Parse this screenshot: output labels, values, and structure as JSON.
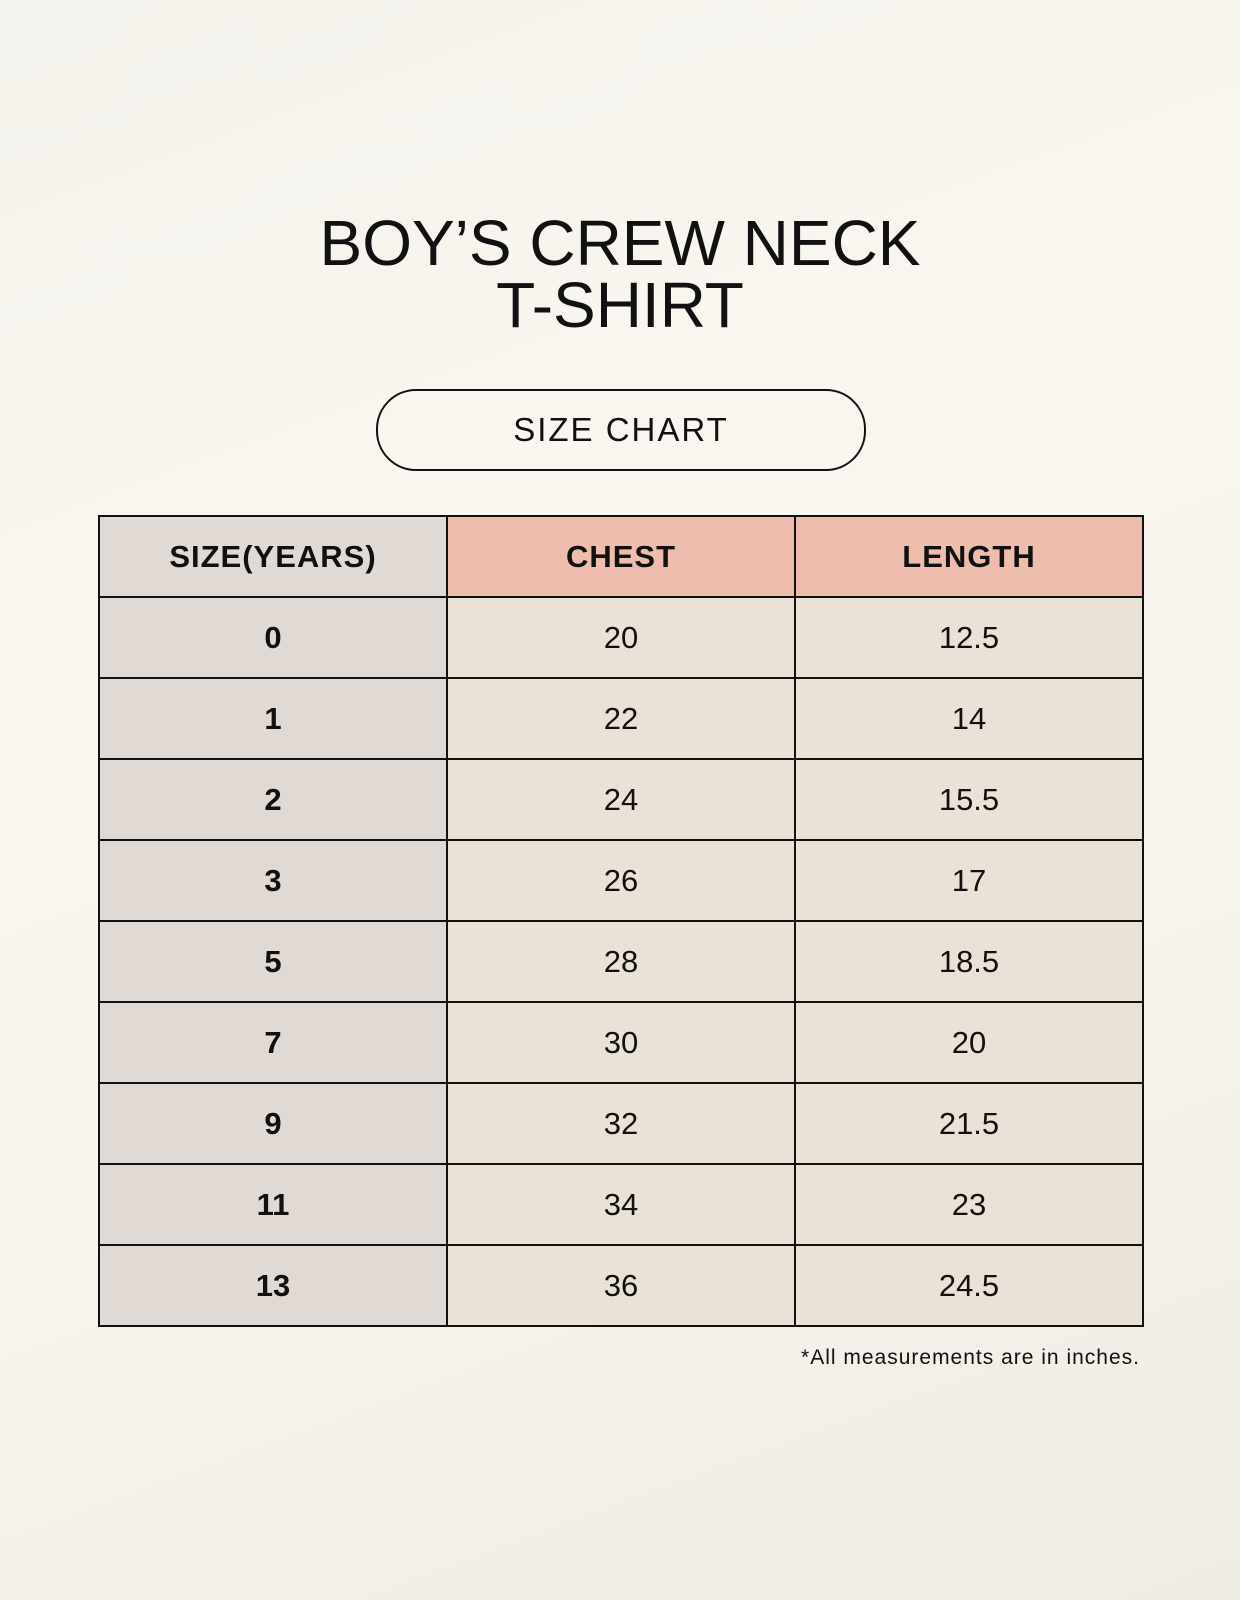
{
  "title": {
    "line1": "BOY’S CREW NECK",
    "line2": "T-SHIRT"
  },
  "subtitle": "SIZE CHART",
  "table": {
    "headers": [
      "SIZE(YEARS)",
      "CHEST",
      "LENGTH"
    ],
    "rows": [
      [
        "0",
        "20",
        "12.5"
      ],
      [
        "1",
        "22",
        "14"
      ],
      [
        "2",
        "24",
        "15.5"
      ],
      [
        "3",
        "26",
        "17"
      ],
      [
        "5",
        "28",
        "18.5"
      ],
      [
        "7",
        "30",
        "20"
      ],
      [
        "9",
        "32",
        "21.5"
      ],
      [
        "11",
        "34",
        "23"
      ],
      [
        "13",
        "36",
        "24.5"
      ]
    ]
  },
  "footnote": "*All measurements are in inches.",
  "colors": {
    "size_column": "#e1d9d3",
    "header_accent": "#eebdae",
    "value_cells": "#ebe2d7"
  }
}
